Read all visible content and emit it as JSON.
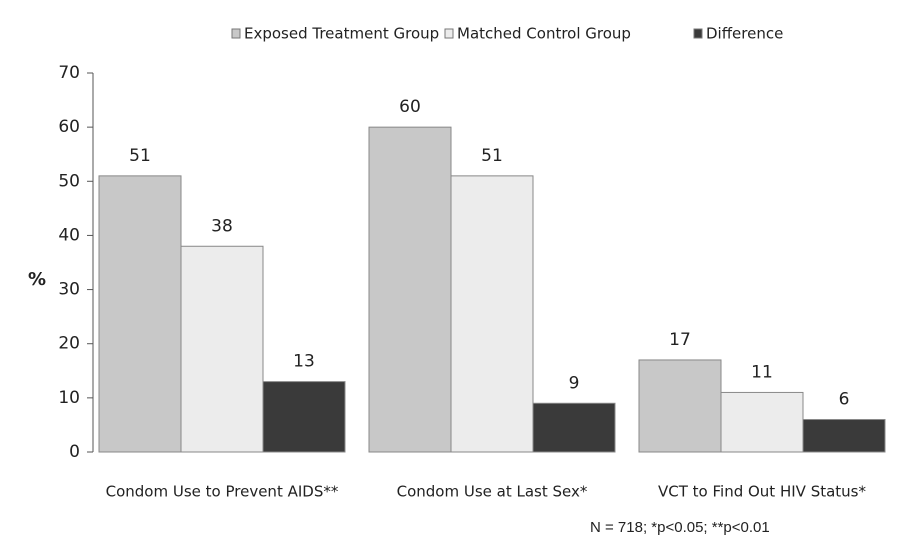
{
  "chart_data": {
    "type": "bar",
    "y_label": "%",
    "note": "N = 718; *p<0.05; **p<0.01",
    "categories": [
      "Condom Use to Prevent AIDS**",
      "Condom Use at Last Sex*",
      "VCT to Find Out HIV Status*"
    ],
    "series": [
      {
        "name": "Exposed Treatment Group",
        "color": "#c8c8c8",
        "values": [
          51,
          60,
          17
        ]
      },
      {
        "name": "Matched Control Group",
        "color": "#ececec",
        "values": [
          38,
          51,
          11
        ]
      },
      {
        "name": "Difference",
        "color": "#3a3a3a",
        "values": [
          13,
          9,
          6
        ]
      }
    ],
    "ylim": [
      0,
      70
    ],
    "yticks": [
      0,
      10,
      20,
      30,
      40,
      50,
      60,
      70
    ],
    "grid": false,
    "legend": "top"
  }
}
